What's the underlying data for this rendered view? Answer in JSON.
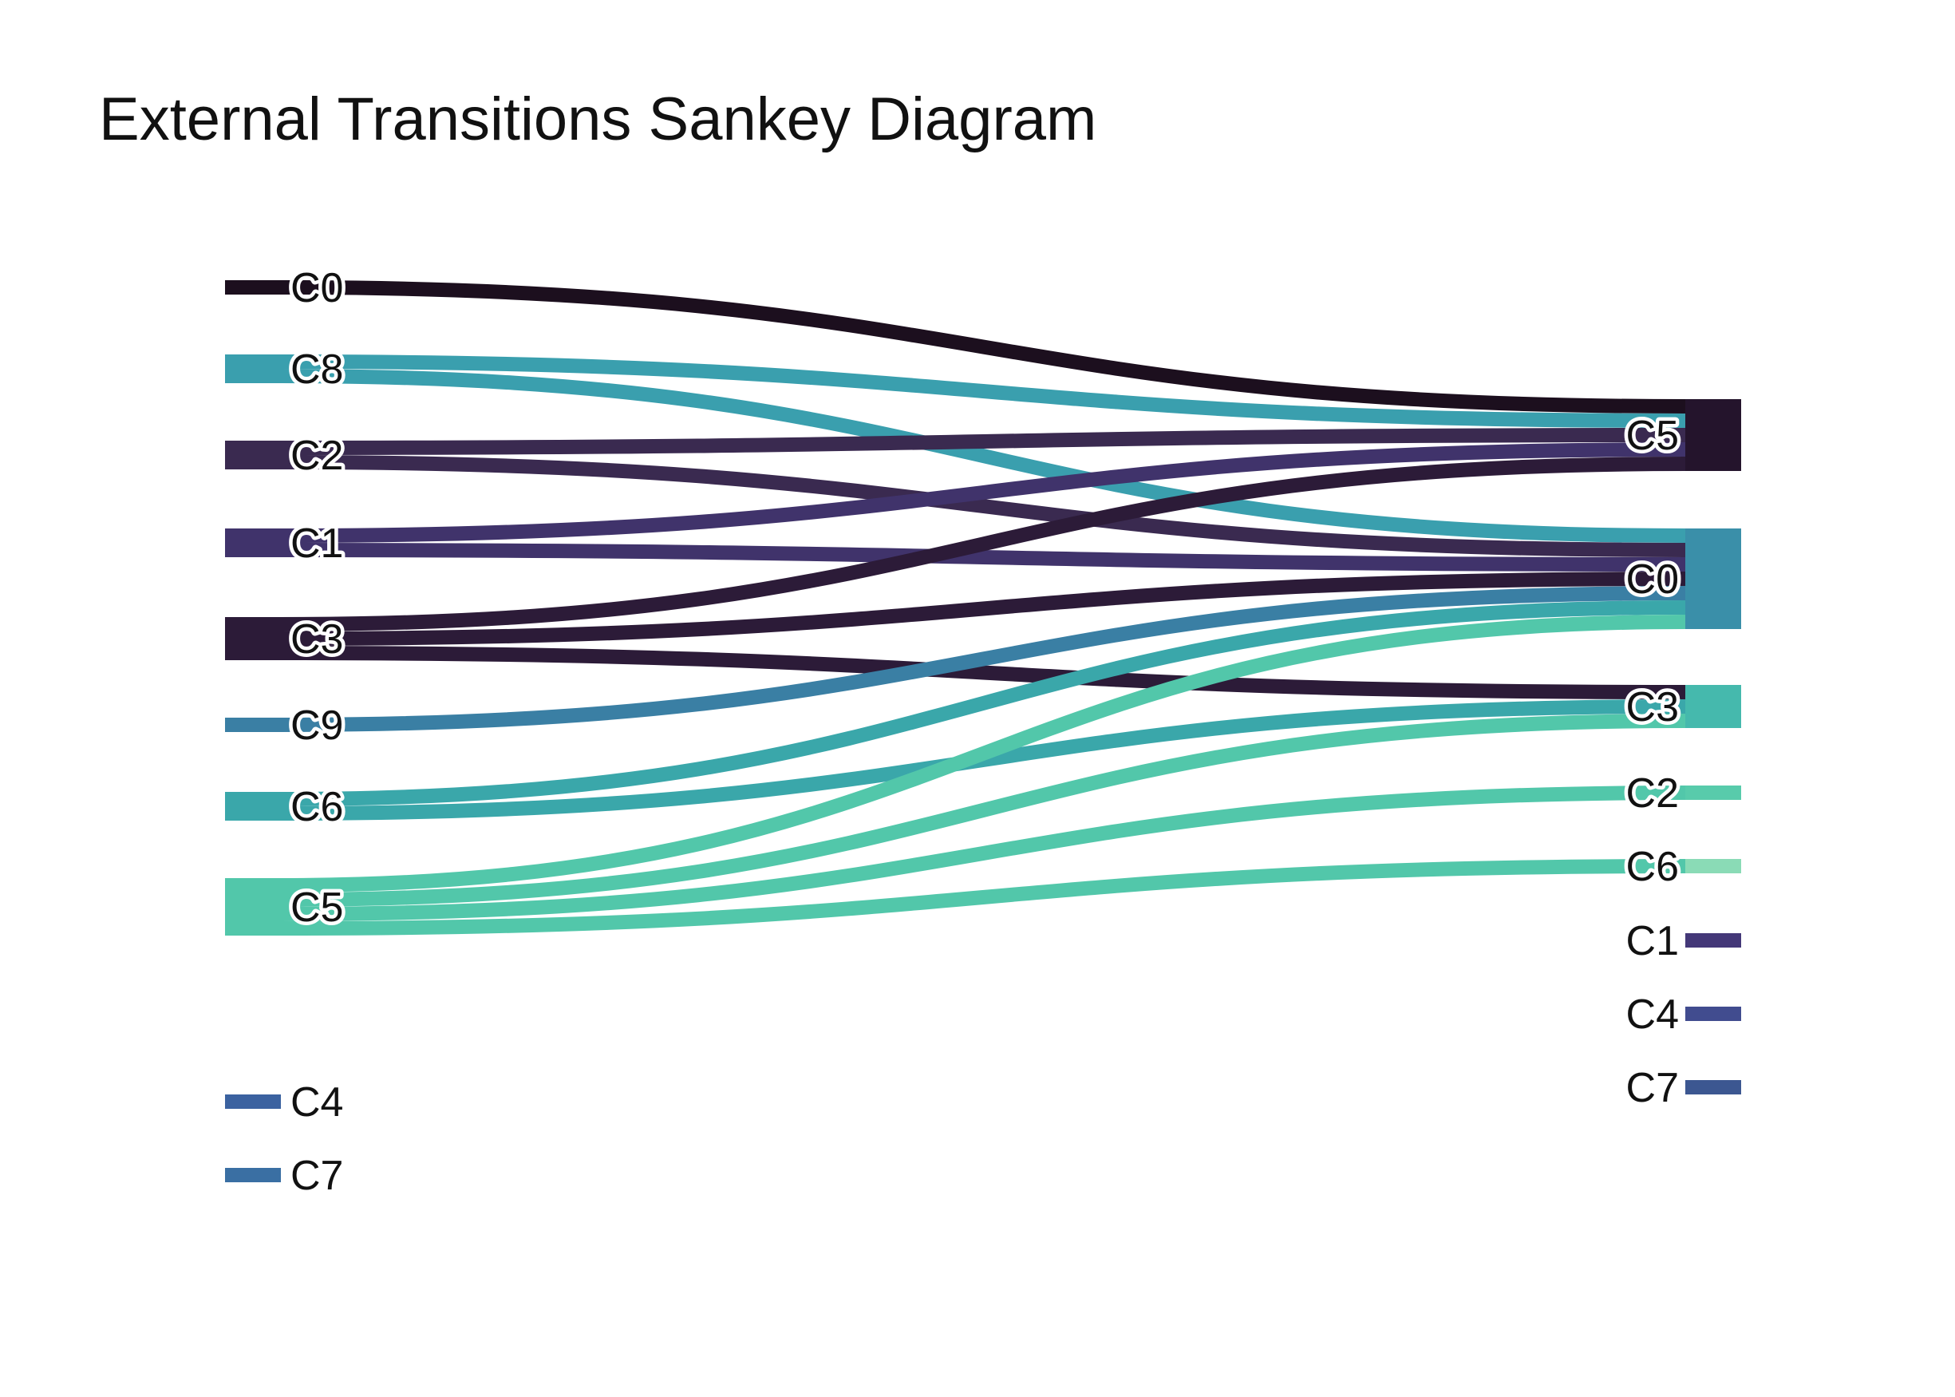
{
  "title": "External Transitions Sankey Diagram",
  "chart_data": {
    "type": "sankey",
    "source_nodes": [
      {
        "id": "s_C0",
        "label": "C0",
        "color": "#1c0f1e"
      },
      {
        "id": "s_C8",
        "label": "C8",
        "color": "#3a9fae"
      },
      {
        "id": "s_C2",
        "label": "C2",
        "color": "#3a2a50"
      },
      {
        "id": "s_C1",
        "label": "C1",
        "color": "#40336b"
      },
      {
        "id": "s_C3",
        "label": "C3",
        "color": "#2c1b38"
      },
      {
        "id": "s_C9",
        "label": "C9",
        "color": "#3a7fa4"
      },
      {
        "id": "s_C6",
        "label": "C6",
        "color": "#3aa7aa"
      },
      {
        "id": "s_C5",
        "label": "C5",
        "color": "#52c7aa"
      },
      {
        "id": "s_C4",
        "label": "C4",
        "color": "#3b62a0"
      },
      {
        "id": "s_C7",
        "label": "C7",
        "color": "#3a6fa3"
      }
    ],
    "target_nodes": [
      {
        "id": "t_C5",
        "label": "C5",
        "color": "#24142c"
      },
      {
        "id": "t_C0",
        "label": "C0",
        "color": "#3a8fa9"
      },
      {
        "id": "t_C3",
        "label": "C3",
        "color": "#45b9ad"
      },
      {
        "id": "t_C2",
        "label": "C2",
        "color": "#58cbab"
      },
      {
        "id": "t_C6",
        "label": "C6",
        "color": "#8adbb6"
      },
      {
        "id": "t_C1",
        "label": "C1",
        "color": "#443878"
      },
      {
        "id": "t_C4",
        "label": "C4",
        "color": "#414c8f"
      },
      {
        "id": "t_C7",
        "label": "C7",
        "color": "#3c5791"
      }
    ],
    "links": [
      {
        "source": "s_C0",
        "target": "t_C5",
        "value": 1
      },
      {
        "source": "s_C8",
        "target": "t_C5",
        "value": 1
      },
      {
        "source": "s_C8",
        "target": "t_C0",
        "value": 1
      },
      {
        "source": "s_C2",
        "target": "t_C5",
        "value": 1
      },
      {
        "source": "s_C2",
        "target": "t_C0",
        "value": 1
      },
      {
        "source": "s_C1",
        "target": "t_C5",
        "value": 1
      },
      {
        "source": "s_C1",
        "target": "t_C0",
        "value": 1
      },
      {
        "source": "s_C3",
        "target": "t_C5",
        "value": 1
      },
      {
        "source": "s_C3",
        "target": "t_C0",
        "value": 1
      },
      {
        "source": "s_C3",
        "target": "t_C3",
        "value": 1
      },
      {
        "source": "s_C9",
        "target": "t_C0",
        "value": 1
      },
      {
        "source": "s_C6",
        "target": "t_C0",
        "value": 1
      },
      {
        "source": "s_C6",
        "target": "t_C3",
        "value": 1
      },
      {
        "source": "s_C5",
        "target": "t_C0",
        "value": 1
      },
      {
        "source": "s_C5",
        "target": "t_C3",
        "value": 1
      },
      {
        "source": "s_C5",
        "target": "t_C2",
        "value": 1
      },
      {
        "source": "s_C5",
        "target": "t_C6",
        "value": 1
      }
    ]
  }
}
